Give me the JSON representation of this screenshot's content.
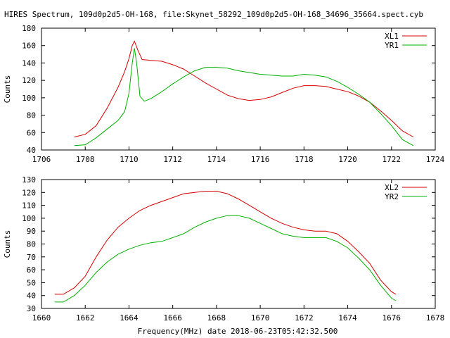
{
  "title": "HIRES Spectrum, 109d0p2d5-OH-168, file:Skynet_58292_109d0p2d5-OH-168_34696_35664.spect.cyb",
  "footer": "Frequency(MHz) date 2018-06-23T05:42:32.500",
  "chart_data": [
    {
      "type": "line",
      "ylabel": "Counts",
      "xlim": [
        1706,
        1724
      ],
      "ylim": [
        40,
        180
      ],
      "xticks": [
        1706,
        1708,
        1710,
        1712,
        1714,
        1716,
        1718,
        1720,
        1722,
        1724
      ],
      "yticks": [
        40,
        60,
        80,
        100,
        120,
        140,
        160,
        180
      ],
      "legend_position": "top-right",
      "series": [
        {
          "name": "XL1",
          "color": "#d40000",
          "points": [
            [
              1707.5,
              55
            ],
            [
              1708.0,
              58
            ],
            [
              1708.5,
              68
            ],
            [
              1709.0,
              88
            ],
            [
              1709.5,
              112
            ],
            [
              1709.8,
              130
            ],
            [
              1710.0,
              145
            ],
            [
              1710.15,
              160
            ],
            [
              1710.25,
              165
            ],
            [
              1710.4,
              155
            ],
            [
              1710.6,
              144
            ],
            [
              1711.0,
              143
            ],
            [
              1711.5,
              142
            ],
            [
              1712.0,
              138
            ],
            [
              1712.5,
              133
            ],
            [
              1713.0,
              125
            ],
            [
              1713.5,
              117
            ],
            [
              1714.0,
              110
            ],
            [
              1714.5,
              103
            ],
            [
              1715.0,
              99
            ],
            [
              1715.5,
              97
            ],
            [
              1716.0,
              98
            ],
            [
              1716.5,
              101
            ],
            [
              1717.0,
              106
            ],
            [
              1717.5,
              111
            ],
            [
              1718.0,
              114
            ],
            [
              1718.5,
              114
            ],
            [
              1719.0,
              113
            ],
            [
              1719.5,
              110
            ],
            [
              1720.0,
              107
            ],
            [
              1720.5,
              102
            ],
            [
              1721.0,
              95
            ],
            [
              1721.5,
              85
            ],
            [
              1722.0,
              74
            ],
            [
              1722.5,
              62
            ],
            [
              1723.0,
              55
            ]
          ]
        },
        {
          "name": "YR1",
          "color": "#00b000",
          "points": [
            [
              1707.5,
              45
            ],
            [
              1708.0,
              46
            ],
            [
              1708.5,
              54
            ],
            [
              1709.0,
              64
            ],
            [
              1709.5,
              74
            ],
            [
              1709.8,
              84
            ],
            [
              1710.0,
              105
            ],
            [
              1710.15,
              140
            ],
            [
              1710.25,
              157
            ],
            [
              1710.35,
              140
            ],
            [
              1710.5,
              102
            ],
            [
              1710.7,
              96
            ],
            [
              1711.0,
              99
            ],
            [
              1711.5,
              107
            ],
            [
              1712.0,
              116
            ],
            [
              1712.5,
              124
            ],
            [
              1713.0,
              131
            ],
            [
              1713.5,
              135
            ],
            [
              1714.0,
              135
            ],
            [
              1714.5,
              134
            ],
            [
              1715.0,
              131
            ],
            [
              1715.5,
              129
            ],
            [
              1716.0,
              127
            ],
            [
              1716.5,
              126
            ],
            [
              1717.0,
              125
            ],
            [
              1717.5,
              125
            ],
            [
              1718.0,
              127
            ],
            [
              1718.5,
              126
            ],
            [
              1719.0,
              124
            ],
            [
              1719.5,
              119
            ],
            [
              1720.0,
              112
            ],
            [
              1720.5,
              104
            ],
            [
              1721.0,
              95
            ],
            [
              1721.5,
              82
            ],
            [
              1722.0,
              68
            ],
            [
              1722.5,
              52
            ],
            [
              1723.0,
              45
            ]
          ]
        }
      ]
    },
    {
      "type": "line",
      "ylabel": "Counts",
      "xlim": [
        1660,
        1678
      ],
      "ylim": [
        30,
        130
      ],
      "xticks": [
        1660,
        1662,
        1664,
        1666,
        1668,
        1670,
        1672,
        1674,
        1676,
        1678
      ],
      "yticks": [
        30,
        40,
        50,
        60,
        70,
        80,
        90,
        100,
        110,
        120,
        130
      ],
      "legend_position": "top-right",
      "series": [
        {
          "name": "XL2",
          "color": "#d40000",
          "points": [
            [
              1660.6,
              41
            ],
            [
              1661.0,
              41
            ],
            [
              1661.5,
              46
            ],
            [
              1662.0,
              55
            ],
            [
              1662.5,
              70
            ],
            [
              1663.0,
              83
            ],
            [
              1663.5,
              93
            ],
            [
              1664.0,
              100
            ],
            [
              1664.5,
              106
            ],
            [
              1665.0,
              110
            ],
            [
              1665.5,
              113
            ],
            [
              1666.0,
              116
            ],
            [
              1666.5,
              119
            ],
            [
              1667.0,
              120
            ],
            [
              1667.5,
              121
            ],
            [
              1668.0,
              121
            ],
            [
              1668.5,
              119
            ],
            [
              1669.0,
              115
            ],
            [
              1669.5,
              110
            ],
            [
              1670.0,
              105
            ],
            [
              1670.5,
              100
            ],
            [
              1671.0,
              96
            ],
            [
              1671.5,
              93
            ],
            [
              1672.0,
              91
            ],
            [
              1672.5,
              90
            ],
            [
              1673.0,
              90
            ],
            [
              1673.5,
              88
            ],
            [
              1674.0,
              82
            ],
            [
              1674.5,
              74
            ],
            [
              1675.0,
              65
            ],
            [
              1675.5,
              52
            ],
            [
              1676.0,
              43
            ],
            [
              1676.2,
              41
            ]
          ]
        },
        {
          "name": "YR2",
          "color": "#00b000",
          "points": [
            [
              1660.6,
              35
            ],
            [
              1661.0,
              35
            ],
            [
              1661.5,
              40
            ],
            [
              1662.0,
              48
            ],
            [
              1662.5,
              58
            ],
            [
              1663.0,
              66
            ],
            [
              1663.5,
              72
            ],
            [
              1664.0,
              76
            ],
            [
              1664.5,
              79
            ],
            [
              1665.0,
              81
            ],
            [
              1665.5,
              82
            ],
            [
              1666.0,
              85
            ],
            [
              1666.5,
              88
            ],
            [
              1667.0,
              93
            ],
            [
              1667.5,
              97
            ],
            [
              1668.0,
              100
            ],
            [
              1668.5,
              102
            ],
            [
              1669.0,
              102
            ],
            [
              1669.5,
              100
            ],
            [
              1670.0,
              96
            ],
            [
              1670.5,
              92
            ],
            [
              1671.0,
              88
            ],
            [
              1671.5,
              86
            ],
            [
              1672.0,
              85
            ],
            [
              1672.5,
              85
            ],
            [
              1673.0,
              85
            ],
            [
              1673.5,
              82
            ],
            [
              1674.0,
              77
            ],
            [
              1674.5,
              69
            ],
            [
              1675.0,
              60
            ],
            [
              1675.5,
              48
            ],
            [
              1676.0,
              38
            ],
            [
              1676.2,
              36
            ]
          ]
        }
      ]
    }
  ]
}
